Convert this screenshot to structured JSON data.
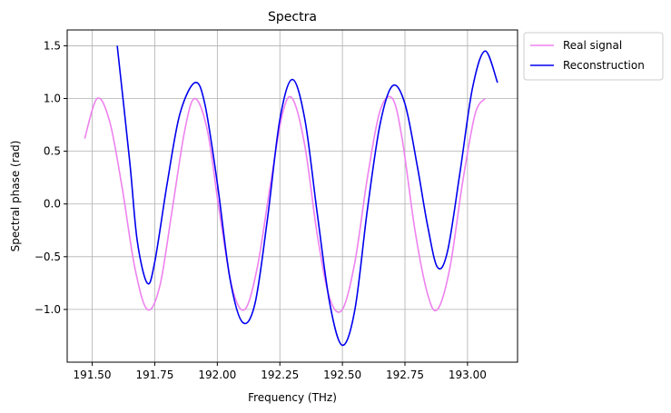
{
  "chart_data": {
    "type": "line",
    "title": "Spectra",
    "xlabel": "Frequency (THz)",
    "ylabel": "Spectral phase (rad)",
    "xlim": [
      191.4,
      193.2
    ],
    "ylim": [
      -1.5,
      1.65
    ],
    "grid": true,
    "legend_position": "upper-right-outside",
    "x_ticks": [
      191.5,
      191.75,
      192.0,
      192.25,
      192.5,
      192.75,
      193.0
    ],
    "x_tick_labels": [
      "191.50",
      "191.75",
      "192.00",
      "192.25",
      "192.50",
      "192.75",
      "193.00"
    ],
    "y_ticks": [
      -1.0,
      -0.5,
      0.0,
      0.5,
      1.0,
      1.5
    ],
    "y_tick_labels": [
      "−1.0",
      "−0.5",
      "0.0",
      "0.5",
      "1.0",
      "1.5"
    ],
    "series": [
      {
        "name": "Real signal",
        "color": "#ee82ee",
        "x": [
          191.47,
          191.52,
          191.57,
          191.62,
          191.67,
          191.72,
          191.77,
          191.82,
          191.87,
          191.91,
          191.96,
          192.01,
          192.06,
          192.11,
          192.16,
          192.21,
          192.26,
          192.3,
          192.35,
          192.4,
          192.45,
          192.5,
          192.55,
          192.6,
          192.65,
          192.7,
          192.74,
          192.79,
          192.84,
          192.88,
          192.93,
          192.98,
          193.03,
          193.07
        ],
        "y": [
          0.62,
          1.0,
          0.78,
          0.15,
          -0.6,
          -1.0,
          -0.78,
          -0.05,
          0.7,
          1.0,
          0.7,
          -0.1,
          -0.8,
          -1.0,
          -0.6,
          0.15,
          0.85,
          1.0,
          0.55,
          -0.3,
          -0.9,
          -1.0,
          -0.55,
          0.25,
          0.88,
          1.0,
          0.6,
          -0.25,
          -0.85,
          -1.0,
          -0.6,
          0.2,
          0.85,
          1.0
        ]
      },
      {
        "name": "Reconstruction",
        "color": "#0000ee",
        "x": [
          191.6,
          191.65,
          191.68,
          191.72,
          191.75,
          191.8,
          191.85,
          191.91,
          191.95,
          192.0,
          192.05,
          192.1,
          192.15,
          192.2,
          192.25,
          192.3,
          192.35,
          192.4,
          192.45,
          192.5,
          192.55,
          192.6,
          192.65,
          192.7,
          192.75,
          192.8,
          192.84,
          192.88,
          192.92,
          192.97,
          193.02,
          193.07,
          193.12
        ],
        "y": [
          1.5,
          0.4,
          -0.35,
          -0.75,
          -0.55,
          0.2,
          0.85,
          1.15,
          0.95,
          0.2,
          -0.7,
          -1.12,
          -0.95,
          -0.15,
          0.8,
          1.18,
          0.8,
          -0.1,
          -0.95,
          -1.34,
          -1.0,
          -0.05,
          0.75,
          1.12,
          0.95,
          0.35,
          -0.2,
          -0.6,
          -0.45,
          0.3,
          1.1,
          1.45,
          1.15
        ]
      }
    ]
  }
}
